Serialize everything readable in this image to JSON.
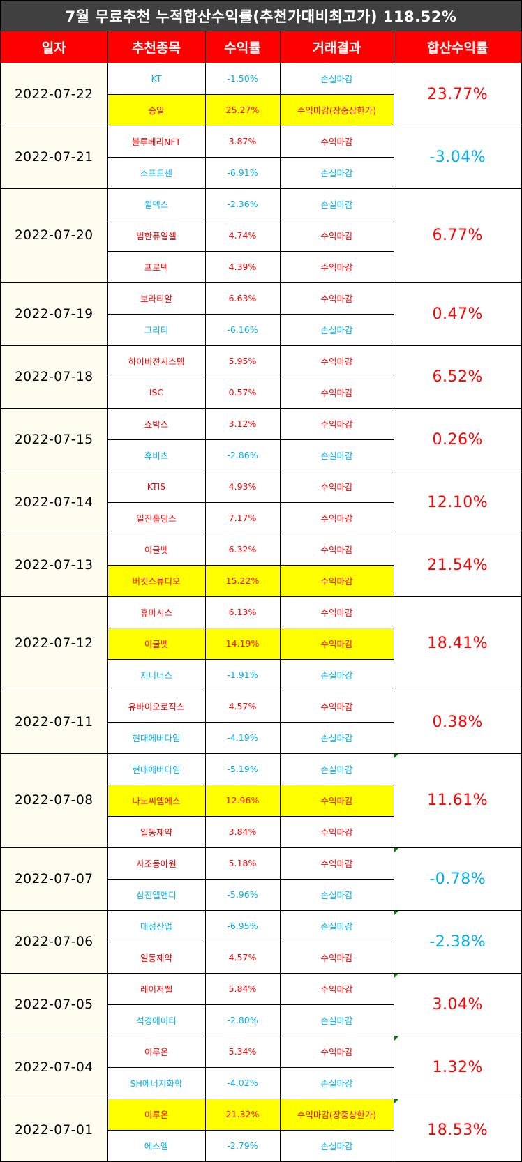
{
  "title": "7월 무료추천 누적합산수익률(추천가대비최고가) 118.52%",
  "headers": {
    "date": "일자",
    "stock": "추천종목",
    "return": "수익률",
    "result": "거래결과",
    "total": "합산수익률"
  },
  "colors": {
    "header_bg": "#ff0000",
    "title_bg": "#404040",
    "positive": "#ff0000",
    "negative": "#00b0f0",
    "highlight": "#ffff00",
    "date_bg": "#fffcf0",
    "comment_marker": "#008000"
  },
  "groups": [
    {
      "date": "2022-07-22",
      "total": "23.77%",
      "sign": "pos",
      "marker": false,
      "rows": [
        {
          "stock": "KT",
          "return": "-1.50%",
          "result": "손실마감",
          "sign": "neg",
          "hl": false
        },
        {
          "stock": "승일",
          "return": "25.27%",
          "result": "수익마감(장중상한가)",
          "sign": "pos",
          "hl": true
        }
      ]
    },
    {
      "date": "2022-07-21",
      "total": "-3.04%",
      "sign": "neg",
      "marker": false,
      "rows": [
        {
          "stock": "블루베리NFT",
          "return": "3.87%",
          "result": "수익마감",
          "sign": "pos",
          "hl": false
        },
        {
          "stock": "소프트센",
          "return": "-6.91%",
          "result": "손실마감",
          "sign": "neg",
          "hl": false
        }
      ]
    },
    {
      "date": "2022-07-20",
      "total": "6.77%",
      "sign": "pos",
      "marker": false,
      "rows": [
        {
          "stock": "윌덱스",
          "return": "-2.36%",
          "result": "손실마감",
          "sign": "neg",
          "hl": false
        },
        {
          "stock": "범한퓨얼셀",
          "return": "4.74%",
          "result": "수익마감",
          "sign": "pos",
          "hl": false
        },
        {
          "stock": "프로텍",
          "return": "4.39%",
          "result": "수익마감",
          "sign": "pos",
          "hl": false
        }
      ]
    },
    {
      "date": "2022-07-19",
      "total": "0.47%",
      "sign": "pos",
      "marker": false,
      "rows": [
        {
          "stock": "보라티알",
          "return": "6.63%",
          "result": "수익마감",
          "sign": "pos",
          "hl": false
        },
        {
          "stock": "그리티",
          "return": "-6.16%",
          "result": "손실마감",
          "sign": "neg",
          "hl": false
        }
      ]
    },
    {
      "date": "2022-07-18",
      "total": "6.52%",
      "sign": "pos",
      "marker": false,
      "rows": [
        {
          "stock": "하이비젼시스템",
          "return": "5.95%",
          "result": "수익마감",
          "sign": "pos",
          "hl": false
        },
        {
          "stock": "ISC",
          "return": "0.57%",
          "result": "수익마감",
          "sign": "pos",
          "hl": false
        }
      ]
    },
    {
      "date": "2022-07-15",
      "total": "0.26%",
      "sign": "pos",
      "marker": false,
      "rows": [
        {
          "stock": "쇼박스",
          "return": "3.12%",
          "result": "수익마감",
          "sign": "pos",
          "hl": false
        },
        {
          "stock": "휴비츠",
          "return": "-2.86%",
          "result": "손실마감",
          "sign": "neg",
          "hl": false
        }
      ]
    },
    {
      "date": "2022-07-14",
      "total": "12.10%",
      "sign": "pos",
      "marker": false,
      "rows": [
        {
          "stock": "KTIS",
          "return": "4.93%",
          "result": "수익마감",
          "sign": "pos",
          "hl": false
        },
        {
          "stock": "일진홀딩스",
          "return": "7.17%",
          "result": "수익마감",
          "sign": "pos",
          "hl": false
        }
      ]
    },
    {
      "date": "2022-07-13",
      "total": "21.54%",
      "sign": "pos",
      "marker": false,
      "rows": [
        {
          "stock": "이글벳",
          "return": "6.32%",
          "result": "수익마감",
          "sign": "pos",
          "hl": false
        },
        {
          "stock": "버킷스튜디오",
          "return": "15.22%",
          "result": "수익마감",
          "sign": "pos",
          "hl": true
        }
      ]
    },
    {
      "date": "2022-07-12",
      "total": "18.41%",
      "sign": "pos",
      "marker": false,
      "rows": [
        {
          "stock": "휴마시스",
          "return": "6.13%",
          "result": "수익마감",
          "sign": "pos",
          "hl": false
        },
        {
          "stock": "이글벳",
          "return": "14.19%",
          "result": "수익마감",
          "sign": "pos",
          "hl": true
        },
        {
          "stock": "지니너스",
          "return": "-1.91%",
          "result": "손실마감",
          "sign": "neg",
          "hl": false
        }
      ]
    },
    {
      "date": "2022-07-11",
      "total": "0.38%",
      "sign": "pos",
      "marker": false,
      "rows": [
        {
          "stock": "유바이오로직스",
          "return": "4.57%",
          "result": "수익마감",
          "sign": "pos",
          "hl": false
        },
        {
          "stock": "현대에버다임",
          "return": "-4.19%",
          "result": "손실마감",
          "sign": "neg",
          "hl": false
        }
      ]
    },
    {
      "date": "2022-07-08",
      "total": "11.61%",
      "sign": "pos",
      "marker": true,
      "rows": [
        {
          "stock": "현대에버다임",
          "return": "-5.19%",
          "result": "손실마감",
          "sign": "neg",
          "hl": false
        },
        {
          "stock": "나노씨엠에스",
          "return": "12.96%",
          "result": "수익마감",
          "sign": "pos",
          "hl": true
        },
        {
          "stock": "일동제약",
          "return": "3.84%",
          "result": "수익마감",
          "sign": "pos",
          "hl": false
        }
      ]
    },
    {
      "date": "2022-07-07",
      "total": "-0.78%",
      "sign": "neg",
      "marker": true,
      "rows": [
        {
          "stock": "사조동아원",
          "return": "5.18%",
          "result": "수익마감",
          "sign": "pos",
          "hl": false
        },
        {
          "stock": "삼진엘앤디",
          "return": "-5.96%",
          "result": "손실마감",
          "sign": "neg",
          "hl": false
        }
      ]
    },
    {
      "date": "2022-07-06",
      "total": "-2.38%",
      "sign": "neg",
      "marker": true,
      "rows": [
        {
          "stock": "대성산업",
          "return": "-6.95%",
          "result": "손실마감",
          "sign": "neg",
          "hl": false
        },
        {
          "stock": "일동제약",
          "return": "4.57%",
          "result": "수익마감",
          "sign": "pos",
          "hl": false
        }
      ]
    },
    {
      "date": "2022-07-05",
      "total": "3.04%",
      "sign": "pos",
      "marker": true,
      "rows": [
        {
          "stock": "레이저쎌",
          "return": "5.84%",
          "result": "수익마감",
          "sign": "pos",
          "hl": false
        },
        {
          "stock": "석경에이티",
          "return": "-2.80%",
          "result": "손실마감",
          "sign": "neg",
          "hl": false
        }
      ]
    },
    {
      "date": "2022-07-04",
      "total": "1.32%",
      "sign": "pos",
      "marker": true,
      "rows": [
        {
          "stock": "이루온",
          "return": "5.34%",
          "result": "수익마감",
          "sign": "pos",
          "hl": false
        },
        {
          "stock": "SH에너지화학",
          "return": "-4.02%",
          "result": "손실마감",
          "sign": "neg",
          "hl": false
        }
      ]
    },
    {
      "date": "2022-07-01",
      "total": "18.53%",
      "sign": "pos",
      "marker": true,
      "rows": [
        {
          "stock": "이루온",
          "return": "21.32%",
          "result": "수익마감(장중상한가)",
          "sign": "pos",
          "hl": true
        },
        {
          "stock": "에스엠",
          "return": "-2.79%",
          "result": "손실마감",
          "sign": "neg",
          "hl": false
        }
      ]
    }
  ]
}
